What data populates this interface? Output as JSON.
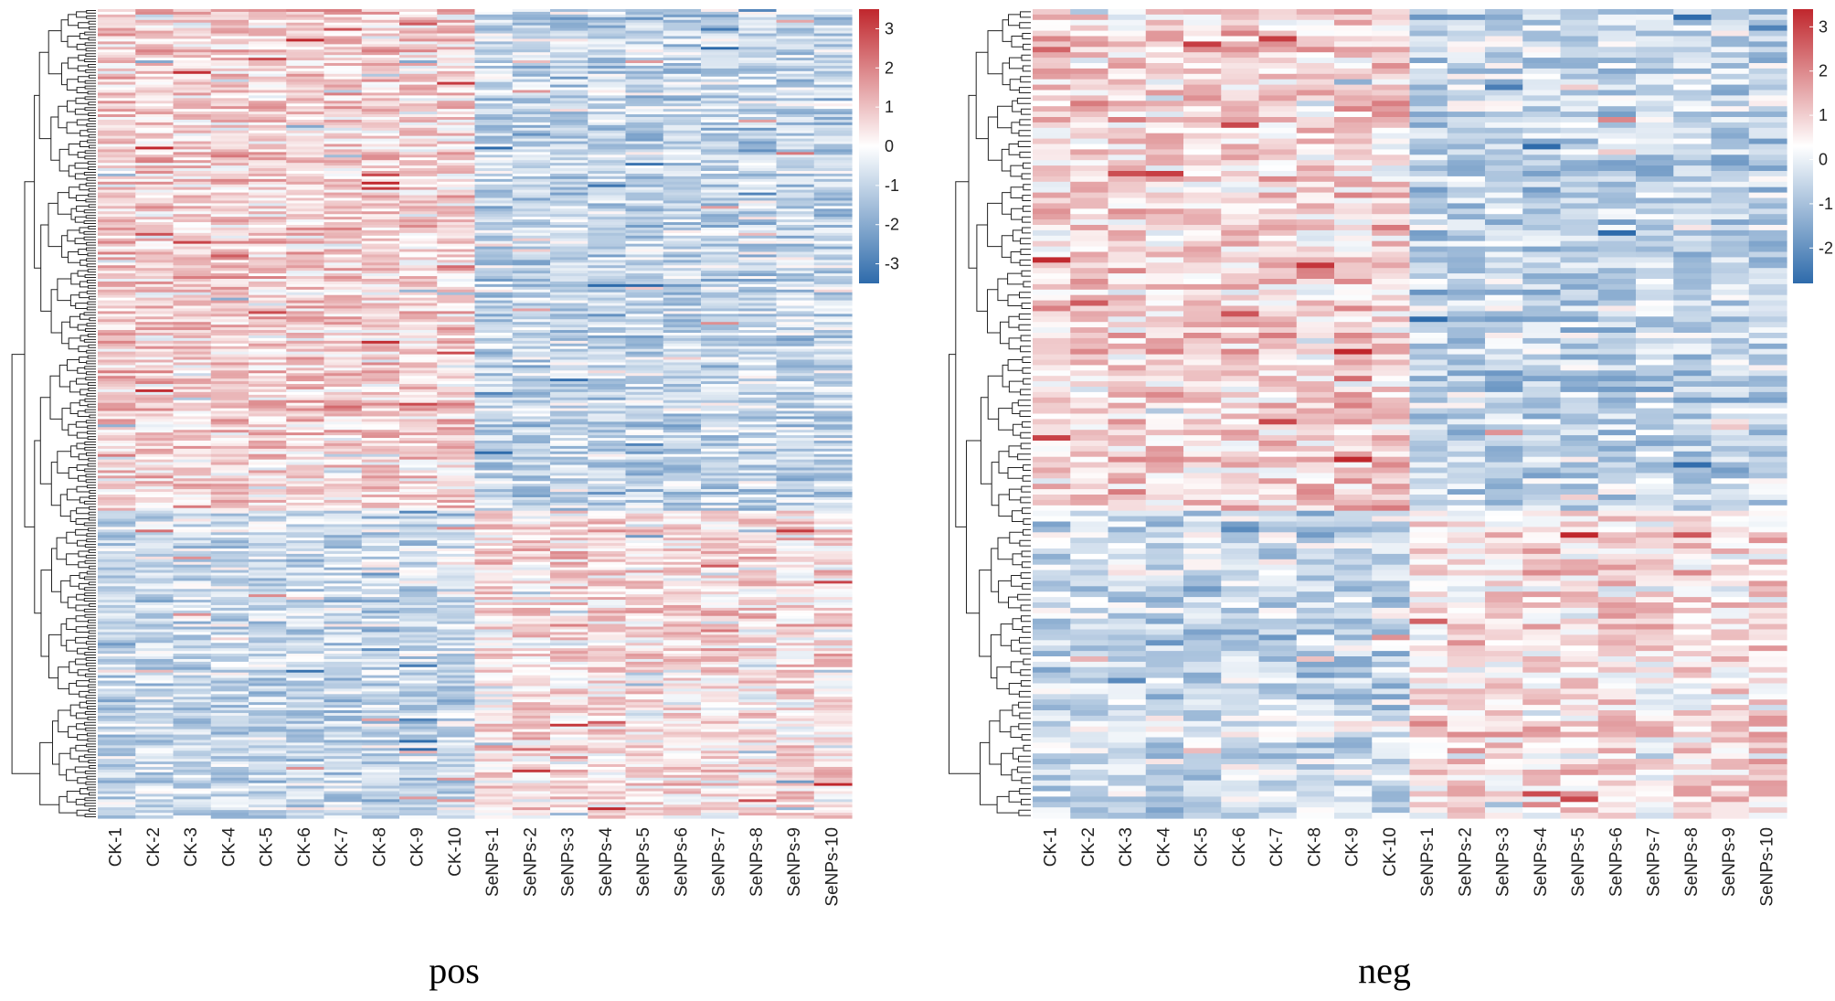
{
  "chart_data": [
    {
      "type": "heatmap",
      "title": "pos",
      "columns": [
        "CK-1",
        "CK-2",
        "CK-3",
        "CK-4",
        "CK-5",
        "CK-6",
        "CK-7",
        "CK-8",
        "CK-9",
        "CK-10",
        "SeNPs-1",
        "SeNPs-2",
        "SeNPs-3",
        "SeNPs-4",
        "SeNPs-5",
        "SeNPs-6",
        "SeNPs-7",
        "SeNPs-8",
        "SeNPs-9",
        "SeNPs-10"
      ],
      "row_dendrogram": true,
      "colorbar": {
        "ticks": [
          3,
          2,
          1,
          0,
          -1,
          -2,
          -3
        ],
        "range": [
          -3.5,
          3.5
        ],
        "low_color": "#2e6bab",
        "mid_color": "#ffffff",
        "high_color": "#c0272d"
      },
      "rows_approx": 300,
      "pattern": "CK samples mostly elevated in upper rows; SeNPs samples elevated in lower rows"
    },
    {
      "type": "heatmap",
      "title": "neg",
      "columns": [
        "CK-1",
        "CK-2",
        "CK-3",
        "CK-4",
        "CK-5",
        "CK-6",
        "CK-7",
        "CK-8",
        "CK-9",
        "CK-10",
        "SeNPs-1",
        "SeNPs-2",
        "SeNPs-3",
        "SeNPs-4",
        "SeNPs-5",
        "SeNPs-6",
        "SeNPs-7",
        "SeNPs-8",
        "SeNPs-9",
        "SeNPs-10"
      ],
      "row_dendrogram": true,
      "colorbar": {
        "ticks": [
          3,
          2,
          1,
          0,
          -1,
          -2
        ],
        "range": [
          -2.8,
          3.4
        ],
        "low_color": "#2e6bab",
        "mid_color": "#ffffff",
        "high_color": "#c0272d"
      },
      "rows_approx": 150,
      "pattern": "CK samples mostly elevated in upper rows; SeNPs samples elevated in lower rows"
    }
  ]
}
